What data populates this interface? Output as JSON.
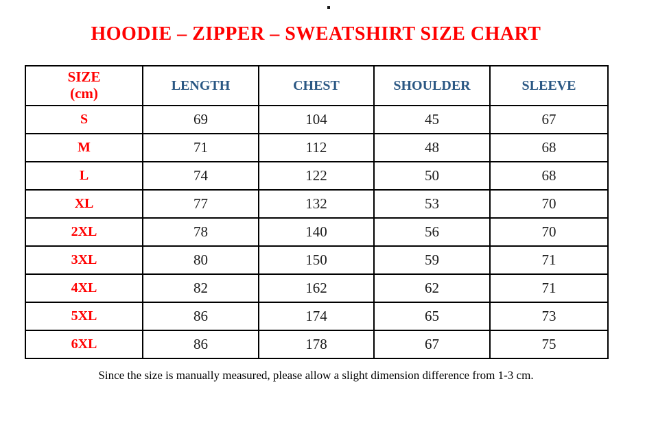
{
  "colors": {
    "background": "#ffffff",
    "title_red": "#ff0000",
    "size_label_red": "#ff0000",
    "header_blue": "#2a5783",
    "body_text": "#1a1a1a",
    "table_border": "#000000"
  },
  "title": {
    "text": "HOODIE – ZIPPER – SWEATSHIRT SIZE CHART"
  },
  "table": {
    "headers": {
      "size": "SIZE\n(cm)",
      "length": "LENGTH",
      "chest": "CHEST",
      "shoulder": "SHOULDER",
      "sleeve": "SLEEVE"
    },
    "rows": [
      {
        "size": "S",
        "length": "69",
        "chest": "104",
        "shoulder": "45",
        "sleeve": "67"
      },
      {
        "size": "M",
        "length": "71",
        "chest": "112",
        "shoulder": "48",
        "sleeve": "68"
      },
      {
        "size": "L",
        "length": "74",
        "chest": "122",
        "shoulder": "50",
        "sleeve": "68"
      },
      {
        "size": "XL",
        "length": "77",
        "chest": "132",
        "shoulder": "53",
        "sleeve": "70"
      },
      {
        "size": "2XL",
        "length": "78",
        "chest": "140",
        "shoulder": "56",
        "sleeve": "70"
      },
      {
        "size": "3XL",
        "length": "80",
        "chest": "150",
        "shoulder": "59",
        "sleeve": "71"
      },
      {
        "size": "4XL",
        "length": "82",
        "chest": "162",
        "shoulder": "62",
        "sleeve": "71"
      },
      {
        "size": "5XL",
        "length": "86",
        "chest": "174",
        "shoulder": "65",
        "sleeve": "73"
      },
      {
        "size": "6XL",
        "length": "86",
        "chest": "178",
        "shoulder": "67",
        "sleeve": "75"
      }
    ]
  },
  "footnote": {
    "text": "Since the size is manually measured, please allow a slight dimension difference from 1-3 cm."
  }
}
